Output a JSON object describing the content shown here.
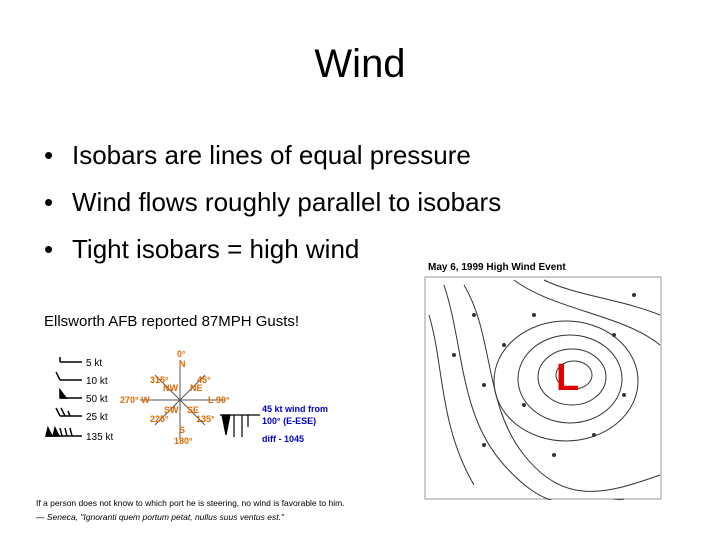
{
  "title": "Wind",
  "bullets": [
    "Isobars are lines of equal pressure",
    "Wind flows roughly parallel to isobars",
    "Tight isobars = high wind"
  ],
  "caption": "Ellsworth AFB reported 87MPH Gusts!",
  "legend": {
    "speeds": [
      "5 kt",
      "10 kt",
      "50 kt",
      "25 kt",
      "135 kt"
    ],
    "directions": [
      "0°",
      "N",
      "315°",
      "NW",
      "45°",
      "NE",
      "270° W",
      "L 90°",
      "SW",
      "SE",
      "225°",
      "135°",
      "S",
      "180°"
    ],
    "example": [
      "45 kt wind from",
      "100° (E-ESE)"
    ],
    "diff": "diff - 1045"
  },
  "map": {
    "title": "May 6, 1999 High Wind Event",
    "low": "L"
  },
  "quote": [
    "If a person does not know to which port he is steering, no wind is favorable to him.",
    "— Seneca, \"Ignoranti quem portum petat, nullus suus ventus est.\""
  ]
}
